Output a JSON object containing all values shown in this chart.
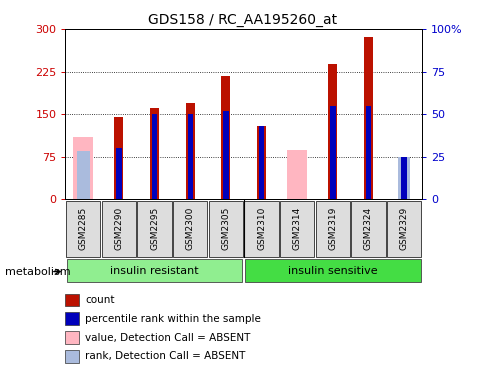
{
  "title": "GDS158 / RC_AA195260_at",
  "samples": [
    "GSM2285",
    "GSM2290",
    "GSM2295",
    "GSM2300",
    "GSM2305",
    "GSM2310",
    "GSM2314",
    "GSM2319",
    "GSM2324",
    "GSM2329"
  ],
  "count_values": [
    0,
    145,
    162,
    170,
    218,
    130,
    0,
    238,
    287,
    0
  ],
  "rank_values": [
    0,
    30,
    50,
    50,
    52,
    43,
    0,
    55,
    55,
    25
  ],
  "absent_value": [
    110,
    0,
    0,
    0,
    0,
    0,
    88,
    0,
    0,
    0
  ],
  "absent_rank": [
    85,
    0,
    0,
    0,
    0,
    0,
    0,
    0,
    0,
    75
  ],
  "groups": [
    {
      "label": "insulin resistant",
      "start": 0,
      "end": 5,
      "color": "#90EE90"
    },
    {
      "label": "insulin sensitive",
      "start": 5,
      "end": 10,
      "color": "#44DD44"
    }
  ],
  "ylim_left": [
    0,
    300
  ],
  "ylim_right": [
    0,
    100
  ],
  "yticks_left": [
    0,
    75,
    150,
    225,
    300
  ],
  "yticks_right": [
    0,
    25,
    50,
    75,
    100
  ],
  "bar_color_red": "#BB1100",
  "bar_color_blue": "#0000BB",
  "absent_value_color": "#FFB6C1",
  "absent_rank_color": "#AABBDD",
  "legend_items": [
    {
      "color": "#BB1100",
      "label": "count"
    },
    {
      "color": "#0000BB",
      "label": "percentile rank within the sample"
    },
    {
      "color": "#FFB6C1",
      "label": "value, Detection Call = ABSENT"
    },
    {
      "color": "#AABBDD",
      "label": "rank, Detection Call = ABSENT"
    }
  ],
  "ylabel_left_color": "#CC0000",
  "ylabel_right_color": "#0000CC",
  "metabolism_label": "metabolism",
  "background_color": "#ffffff"
}
